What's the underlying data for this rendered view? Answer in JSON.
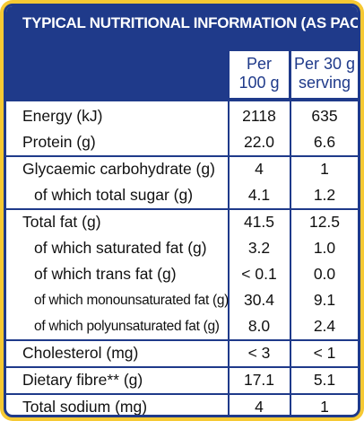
{
  "title": "TYPICAL NUTRITIONAL INFORMATION (AS PACKED)",
  "columns": {
    "per100_line1": "Per",
    "per100_line2": "100 g",
    "perServing_line1": "Per 30 g",
    "perServing_line2": "serving"
  },
  "rows": [
    {
      "label": "Energy (kJ)",
      "per100": "2118",
      "perServing": "635"
    },
    {
      "label": "Protein (g)",
      "per100": "22.0",
      "perServing": "6.6"
    },
    {
      "label": "Glycaemic carbohydrate (g)",
      "per100": "4",
      "perServing": "1"
    },
    {
      "label": "of which total sugar (g)",
      "per100": "4.1",
      "perServing": "1.2"
    },
    {
      "label": "Total fat (g)",
      "per100": "41.5",
      "perServing": "12.5"
    },
    {
      "label": "of which saturated fat (g)",
      "per100": "3.2",
      "perServing": "1.0"
    },
    {
      "label": "of which trans fat (g)",
      "per100": "< 0.1",
      "perServing": "0.0"
    },
    {
      "label": "of which monounsaturated fat (g)",
      "per100": "30.4",
      "perServing": "9.1"
    },
    {
      "label": "of which polyunsaturated fat (g)",
      "per100": "8.0",
      "perServing": "2.4"
    },
    {
      "label": "Cholesterol (mg)",
      "per100": "< 3",
      "perServing": "< 1"
    },
    {
      "label": "Dietary fibre** (g)",
      "per100": "17.1",
      "perServing": "5.1"
    },
    {
      "label": "Total sodium (mg)",
      "per100": "4",
      "perServing": "1"
    }
  ],
  "colors": {
    "navy": "#1f3a8a",
    "border_yellow": "#f6c933"
  }
}
